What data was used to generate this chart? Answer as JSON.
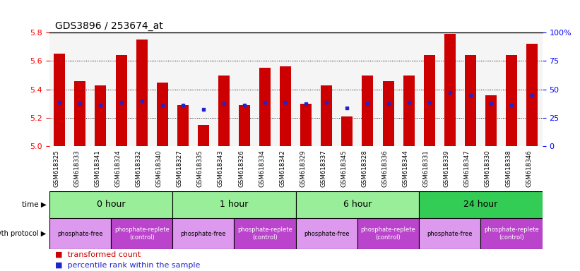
{
  "title": "GDS3896 / 253674_at",
  "samples": [
    "GSM618325",
    "GSM618333",
    "GSM618341",
    "GSM618324",
    "GSM618332",
    "GSM618340",
    "GSM618327",
    "GSM618335",
    "GSM618343",
    "GSM618326",
    "GSM618334",
    "GSM618342",
    "GSM618329",
    "GSM618337",
    "GSM618345",
    "GSM618328",
    "GSM618336",
    "GSM618344",
    "GSM618331",
    "GSM618339",
    "GSM618347",
    "GSM618330",
    "GSM618338",
    "GSM618346"
  ],
  "bar_values": [
    5.65,
    5.46,
    5.43,
    5.64,
    5.75,
    5.45,
    5.29,
    5.15,
    5.5,
    5.29,
    5.55,
    5.56,
    5.3,
    5.43,
    5.21,
    5.5,
    5.46,
    5.5,
    5.64,
    5.79,
    5.64,
    5.36,
    5.64,
    5.72
  ],
  "percentile_values": [
    5.31,
    5.3,
    5.29,
    5.31,
    5.32,
    5.29,
    5.29,
    5.26,
    5.3,
    5.29,
    5.31,
    5.31,
    5.3,
    5.31,
    5.27,
    5.3,
    5.3,
    5.31,
    5.31,
    5.38,
    5.36,
    5.3,
    5.29,
    5.36
  ],
  "ymin": 5.0,
  "ymax": 5.8,
  "y2min": 0,
  "y2max": 100,
  "y2ticks": [
    0,
    25,
    50,
    75,
    100
  ],
  "y2ticklabels": [
    "0",
    "25",
    "50",
    "75",
    "100%"
  ],
  "bar_color": "#cc0000",
  "percentile_color": "#2222cc",
  "bar_width": 0.55,
  "yticks": [
    5.0,
    5.2,
    5.4,
    5.6,
    5.8
  ],
  "bg_color": "#ffffff",
  "time_colors": [
    "#99ee99",
    "#99ee99",
    "#99ee99",
    "#33cc55"
  ],
  "time_labels": [
    "0 hour",
    "1 hour",
    "6 hour",
    "24 hour"
  ],
  "time_ranges": [
    [
      0,
      6
    ],
    [
      6,
      12
    ],
    [
      12,
      18
    ],
    [
      18,
      24
    ]
  ],
  "proto_ranges": [
    [
      0,
      3,
      "phosphate-free"
    ],
    [
      3,
      6,
      "phosphate-replete\n(control)"
    ],
    [
      6,
      9,
      "phosphate-free"
    ],
    [
      9,
      12,
      "phosphate-replete\n(control)"
    ],
    [
      12,
      15,
      "phosphate-free"
    ],
    [
      15,
      18,
      "phosphate-replete\n(control)"
    ],
    [
      18,
      21,
      "phosphate-free"
    ],
    [
      21,
      24,
      "phosphate-replete\n(control)"
    ]
  ],
  "proto_free_color": "#dd99ee",
  "proto_replete_color": "#bb44cc"
}
